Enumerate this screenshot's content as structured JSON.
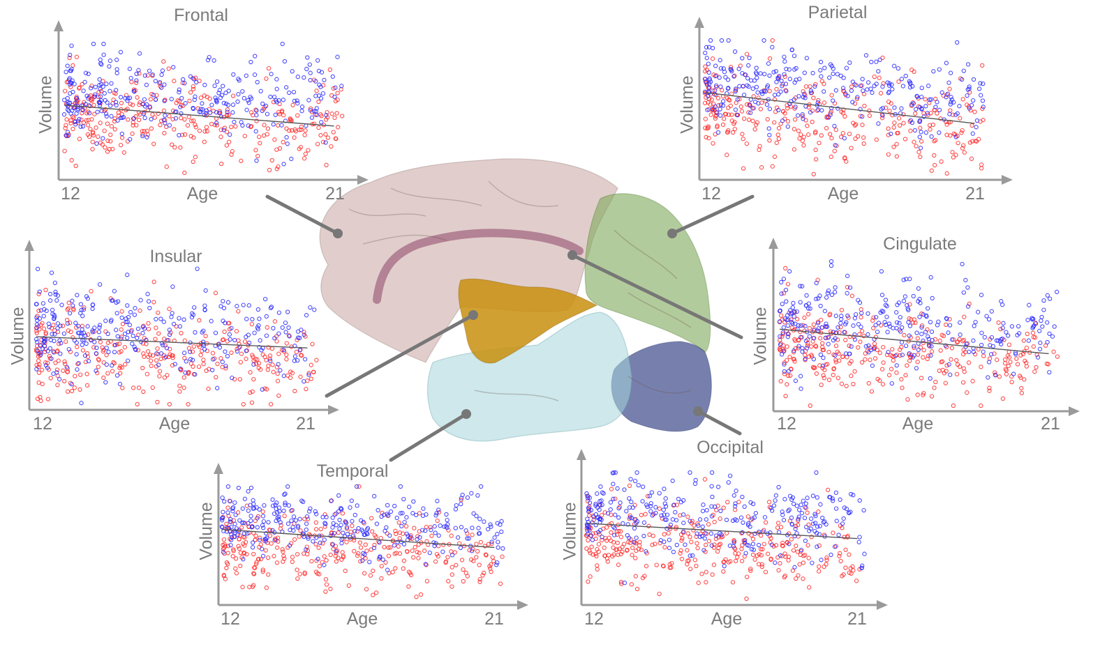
{
  "figure": {
    "colors": {
      "series_a": "#ff2a2a",
      "series_b": "#2a2aff",
      "axis": "#9a9a9a",
      "trend": "#555555",
      "regions": {
        "frontal": "#c8a6a2",
        "parietal": "#7fa85a",
        "occipital": "#3d4a8a",
        "temporal": "#a6d6da",
        "insular": "#c98f0e",
        "cingulate": "#8e4468"
      }
    },
    "center_illustration": "brain-lateral-view"
  },
  "chart_data": [
    {
      "id": "frontal",
      "type": "scatter",
      "title": "Frontal",
      "xlabel": "Age",
      "ylabel": "Volume",
      "x_ticks": [
        "12",
        "21"
      ],
      "xlim": [
        12,
        21.5
      ],
      "ylim": [
        0,
        1
      ],
      "series": [
        {
          "color": "#ff2a2a",
          "n": 330,
          "center": 0.45,
          "spread": 0.16
        },
        {
          "color": "#2a2aff",
          "n": 300,
          "center": 0.62,
          "spread": 0.16
        }
      ],
      "trend": {
        "x": [
          12,
          21
        ],
        "y": [
          0.53,
          0.37
        ]
      }
    },
    {
      "id": "parietal",
      "type": "scatter",
      "title": "Parietal",
      "xlabel": "Age",
      "ylabel": "Volume",
      "x_ticks": [
        "12",
        "21"
      ],
      "xlim": [
        12,
        21.5
      ],
      "ylim": [
        0,
        1
      ],
      "series": [
        {
          "color": "#ff2a2a",
          "n": 330,
          "center": 0.42,
          "spread": 0.16
        },
        {
          "color": "#2a2aff",
          "n": 300,
          "center": 0.63,
          "spread": 0.15
        }
      ],
      "trend": {
        "x": [
          12,
          21
        ],
        "y": [
          0.61,
          0.38
        ]
      }
    },
    {
      "id": "insular",
      "type": "scatter",
      "title": "Insular",
      "xlabel": "Age",
      "ylabel": "Volume",
      "x_ticks": [
        "12",
        "21"
      ],
      "xlim": [
        12,
        21.5
      ],
      "ylim": [
        0,
        1
      ],
      "series": [
        {
          "color": "#ff2a2a",
          "n": 330,
          "center": 0.4,
          "spread": 0.16
        },
        {
          "color": "#2a2aff",
          "n": 300,
          "center": 0.55,
          "spread": 0.16
        }
      ],
      "trend": {
        "x": [
          12,
          21
        ],
        "y": [
          0.48,
          0.4
        ]
      }
    },
    {
      "id": "cingulate",
      "type": "scatter",
      "title": "Cingulate",
      "xlabel": "Age",
      "ylabel": "Volume",
      "x_ticks": [
        "12",
        "21"
      ],
      "xlim": [
        12,
        21.5
      ],
      "ylim": [
        0,
        1
      ],
      "series": [
        {
          "color": "#ff2a2a",
          "n": 330,
          "center": 0.4,
          "spread": 0.16
        },
        {
          "color": "#2a2aff",
          "n": 300,
          "center": 0.58,
          "spread": 0.16
        }
      ],
      "trend": {
        "x": [
          12,
          21
        ],
        "y": [
          0.53,
          0.36
        ]
      }
    },
    {
      "id": "temporal",
      "type": "scatter",
      "title": "Temporal",
      "xlabel": "Age",
      "ylabel": "Volume",
      "x_ticks": [
        "12",
        "21"
      ],
      "xlim": [
        12,
        21.5
      ],
      "ylim": [
        0,
        1
      ],
      "series": [
        {
          "color": "#ff2a2a",
          "n": 330,
          "center": 0.4,
          "spread": 0.16
        },
        {
          "color": "#2a2aff",
          "n": 300,
          "center": 0.63,
          "spread": 0.15
        }
      ],
      "trend": {
        "x": [
          12,
          21
        ],
        "y": [
          0.62,
          0.46
        ]
      }
    },
    {
      "id": "occipital",
      "type": "scatter",
      "title": "Occipital",
      "xlabel": "Age",
      "ylabel": "Volume",
      "x_ticks": [
        "12",
        "21"
      ],
      "xlim": [
        12,
        21.5
      ],
      "ylim": [
        0,
        1
      ],
      "series": [
        {
          "color": "#ff2a2a",
          "n": 330,
          "center": 0.4,
          "spread": 0.16
        },
        {
          "color": "#2a2aff",
          "n": 300,
          "center": 0.62,
          "spread": 0.16
        }
      ],
      "trend": {
        "x": [
          12,
          21
        ],
        "y": [
          0.6,
          0.48
        ]
      }
    }
  ]
}
